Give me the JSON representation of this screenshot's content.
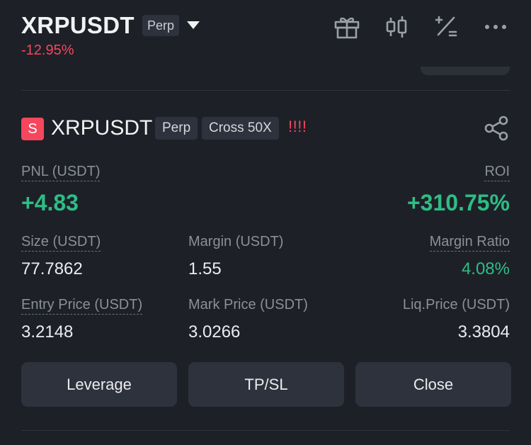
{
  "header": {
    "symbol": "XRPUSDT",
    "contract_type": "Perp",
    "change_percent": "-12.95%",
    "icons": [
      "gift-icon",
      "candlestick-chart-icon",
      "calculator-icon",
      "more-icon"
    ]
  },
  "position": {
    "side_badge": "S",
    "symbol": "XRPUSDT",
    "contract_type": "Perp",
    "margin_mode": "Cross 50X",
    "alert_marks": "!!!!",
    "pnl_label": "PNL (USDT)",
    "pnl_value": "+4.83",
    "roi_label": "ROI",
    "roi_value": "+310.75%",
    "size_label": "Size (USDT)",
    "size_value": "77.7862",
    "margin_label": "Margin (USDT)",
    "margin_value": "1.55",
    "margin_ratio_label": "Margin Ratio",
    "margin_ratio_value": "4.08%",
    "entry_price_label": "Entry Price (USDT)",
    "entry_price_value": "3.2148",
    "mark_price_label": "Mark Price (USDT)",
    "mark_price_value": "3.0266",
    "liq_price_label": "Liq.Price (USDT)",
    "liq_price_value": "3.3804"
  },
  "actions": {
    "leverage": "Leverage",
    "tpsl": "TP/SL",
    "close": "Close"
  },
  "colors": {
    "background": "#1e2027",
    "positive": "#2ebd85",
    "negative": "#f6465d",
    "muted_text": "#8a8f99",
    "button_bg": "#2e323c"
  }
}
